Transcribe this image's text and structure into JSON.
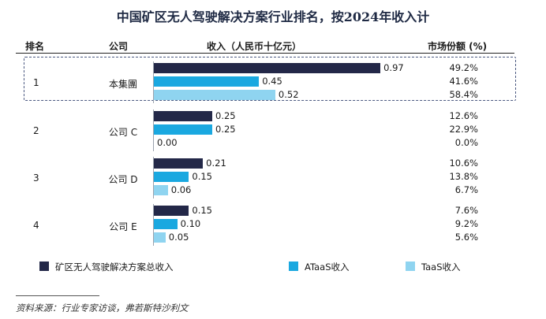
{
  "title": "中国矿区无人驾驶解决方案行业排名，按2024年收入计",
  "headers": {
    "rank": "排名",
    "company": "公司",
    "revenue": "收入（人民币十亿元）",
    "share": "市场份额 (%)"
  },
  "source": "资料来源：行业专家访谈，弗若斯特沙利文",
  "chart_data": {
    "type": "bar",
    "orientation": "horizontal",
    "title": "中国矿区无人驾驶解决方案行业排名，按2024年收入计",
    "xlabel": "收入（人民币十亿元）",
    "xlim": [
      0,
      1.0
    ],
    "legend_position": "bottom",
    "series": [
      {
        "name": "矿区无人驾驶解决方案总收入",
        "color": "#232848"
      },
      {
        "name": "ATaaS收入",
        "color": "#1aa8e0"
      },
      {
        "name": "TaaS收入",
        "color": "#8fd4f0"
      }
    ],
    "companies": [
      {
        "rank": "1",
        "name": "本集團",
        "values": [
          0.97,
          0.45,
          0.52
        ],
        "labels": [
          "0.97",
          "0.45",
          "0.52"
        ],
        "shares": [
          "49.2%",
          "41.6%",
          "58.4%"
        ],
        "highlighted": true
      },
      {
        "rank": "2",
        "name": "公司 C",
        "values": [
          0.25,
          0.25,
          0.0
        ],
        "labels": [
          "0.25",
          "0.25",
          "0.00"
        ],
        "shares": [
          "12.6%",
          "22.9%",
          "0.0%"
        ],
        "highlighted": false
      },
      {
        "rank": "3",
        "name": "公司 D",
        "values": [
          0.21,
          0.15,
          0.06
        ],
        "labels": [
          "0.21",
          "0.15",
          "0.06"
        ],
        "shares": [
          "10.6%",
          "13.8%",
          "6.7%"
        ],
        "highlighted": false
      },
      {
        "rank": "4",
        "name": "公司 E",
        "values": [
          0.15,
          0.1,
          0.05
        ],
        "labels": [
          "0.15",
          "0.10",
          "0.05"
        ],
        "shares": [
          "7.6%",
          "9.2%",
          "5.6%"
        ],
        "highlighted": false
      }
    ]
  }
}
